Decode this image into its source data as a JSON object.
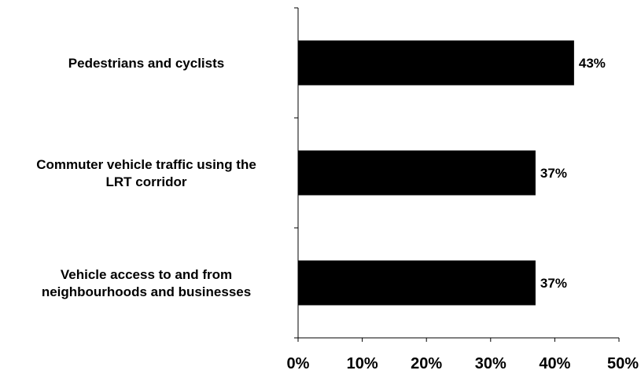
{
  "chart_data": {
    "type": "bar",
    "orientation": "horizontal",
    "categories": [
      [
        "Pedestrians and cyclists"
      ],
      [
        "Commuter vehicle traffic using the",
        "LRT corridor"
      ],
      [
        "Vehicle access to and from",
        "neighbourhoods and businesses"
      ]
    ],
    "values": [
      43,
      37,
      37
    ],
    "data_labels": [
      "43%",
      "37%",
      "37%"
    ],
    "xlim": [
      0,
      50
    ],
    "x_ticks": [
      0,
      10,
      20,
      30,
      40,
      50
    ],
    "x_tick_labels": [
      "0%",
      "10%",
      "20%",
      "30%",
      "40%",
      "50%"
    ],
    "bar_color": "#000000",
    "grid": false,
    "legend": "none"
  }
}
